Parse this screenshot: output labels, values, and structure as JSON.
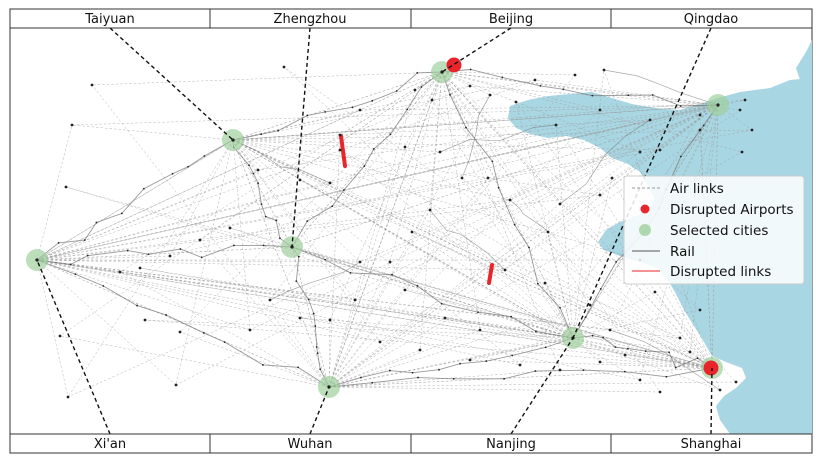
{
  "top_labels": [
    "Taiyuan",
    "Zhengzhou",
    "Beijing",
    "Qingdao"
  ],
  "bottom_labels": [
    "Xi'an",
    "Wuhan",
    "Nanjing",
    "Shanghai"
  ],
  "legend": {
    "items": [
      {
        "label": "Air links",
        "kind": "air-line"
      },
      {
        "label": "Disrupted Airports",
        "kind": "red-dot"
      },
      {
        "label": "Selected cities",
        "kind": "green-dot"
      },
      {
        "label": "Rail",
        "kind": "rail-line"
      },
      {
        "label": "Disrupted links",
        "kind": "red-line"
      }
    ]
  },
  "colors": {
    "sea": "#a9d6e3",
    "land": "#ffffff",
    "air_link": "#9a9a9a",
    "rail": "#6e6e6e",
    "selected_city": "#9fd09c",
    "disrupted": "#e8252a",
    "node": "#222222"
  },
  "cities": {
    "Taiyuan": {
      "selected": true,
      "disrupted_airport": false
    },
    "Zhengzhou": {
      "selected": true,
      "disrupted_airport": false
    },
    "Beijing": {
      "selected": true,
      "disrupted_airport": true
    },
    "Qingdao": {
      "selected": true,
      "disrupted_airport": false
    },
    "Xi'an": {
      "selected": true,
      "disrupted_airport": false
    },
    "Wuhan": {
      "selected": true,
      "disrupted_airport": false
    },
    "Nanjing": {
      "selected": true,
      "disrupted_airport": false
    },
    "Shanghai": {
      "selected": true,
      "disrupted_airport": true
    }
  }
}
